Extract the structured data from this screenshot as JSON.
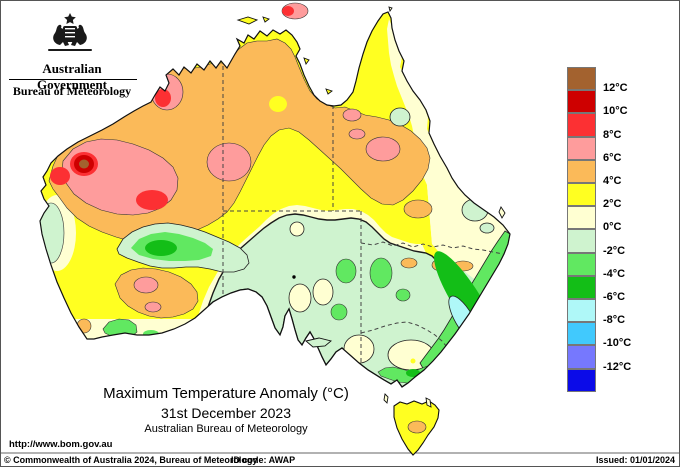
{
  "header": {
    "government": "Australian Government",
    "bureau": "Bureau of Meteorology"
  },
  "legend": {
    "labels": [
      "12°C",
      "10°C",
      "8°C",
      "6°C",
      "4°C",
      "2°C",
      "0°C",
      "-2°C",
      "-4°C",
      "-6°C",
      "-8°C",
      "-10°C",
      "-12°C"
    ],
    "swatch_colors": [
      "#A3622F",
      "#CE0000",
      "#FC3033",
      "#FE9C9C",
      "#FBBA59",
      "#FFFF21",
      "#FFFFD2",
      "#CFF3CF",
      "#61E861",
      "#13BE17",
      "#AFF8F8",
      "#41C9FD",
      "#7678FE",
      "#0B0BE8"
    ]
  },
  "map": {
    "region": "Australia",
    "palette": {
      "brown": "#A3622F",
      "dark_red": "#CE0000",
      "red": "#FC3033",
      "pink": "#FE9C9C",
      "orange": "#FBBA59",
      "yellow": "#FFFF21",
      "cream": "#FFFFD2",
      "mint": "#CFF3CF",
      "light_green": "#61E861",
      "green": "#13BE17",
      "pale_cyan": "#AFF8F8",
      "cyan": "#41C9FD",
      "violet": "#7678FE",
      "blue": "#0B0BE8"
    },
    "coastline_color": "#111111",
    "state_border_style": "dashed"
  },
  "title": {
    "line1": "Maximum Temperature Anomaly (°C)",
    "line2": "31st December 2023",
    "line3": "Australian Bureau of Meteorology"
  },
  "footer": {
    "url": "http://www.bom.gov.au",
    "copyright": "© Commonwealth of Australia 2024, Bureau of Meteorology",
    "id_code": "ID code: AWAP",
    "issued": "Issued: 01/01/2024"
  }
}
